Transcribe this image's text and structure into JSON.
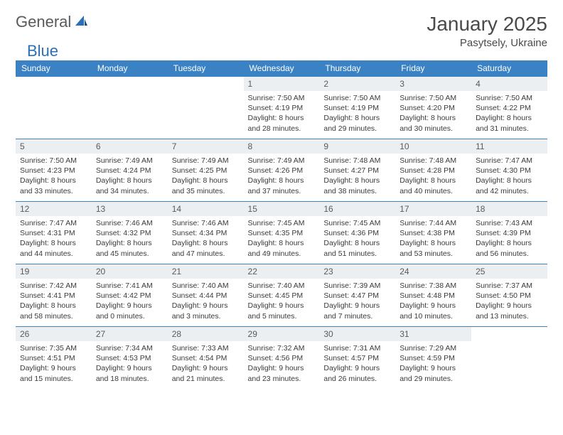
{
  "brand": {
    "name_part1": "General",
    "name_part2": "Blue"
  },
  "title": "January 2025",
  "location": "Pasytsely, Ukraine",
  "colors": {
    "header_bg": "#3a82c4",
    "header_fg": "#ffffff",
    "daynum_bg": "#eceff1",
    "border": "#3a82c4",
    "text": "#3a3a3a",
    "brand_blue": "#2c6fb5"
  },
  "day_headers": [
    "Sunday",
    "Monday",
    "Tuesday",
    "Wednesday",
    "Thursday",
    "Friday",
    "Saturday"
  ],
  "weeks": [
    [
      null,
      null,
      null,
      {
        "day": "1",
        "sunrise": "Sunrise: 7:50 AM",
        "sunset": "Sunset: 4:19 PM",
        "daylight1": "Daylight: 8 hours",
        "daylight2": "and 28 minutes."
      },
      {
        "day": "2",
        "sunrise": "Sunrise: 7:50 AM",
        "sunset": "Sunset: 4:19 PM",
        "daylight1": "Daylight: 8 hours",
        "daylight2": "and 29 minutes."
      },
      {
        "day": "3",
        "sunrise": "Sunrise: 7:50 AM",
        "sunset": "Sunset: 4:20 PM",
        "daylight1": "Daylight: 8 hours",
        "daylight2": "and 30 minutes."
      },
      {
        "day": "4",
        "sunrise": "Sunrise: 7:50 AM",
        "sunset": "Sunset: 4:22 PM",
        "daylight1": "Daylight: 8 hours",
        "daylight2": "and 31 minutes."
      }
    ],
    [
      {
        "day": "5",
        "sunrise": "Sunrise: 7:50 AM",
        "sunset": "Sunset: 4:23 PM",
        "daylight1": "Daylight: 8 hours",
        "daylight2": "and 33 minutes."
      },
      {
        "day": "6",
        "sunrise": "Sunrise: 7:49 AM",
        "sunset": "Sunset: 4:24 PM",
        "daylight1": "Daylight: 8 hours",
        "daylight2": "and 34 minutes."
      },
      {
        "day": "7",
        "sunrise": "Sunrise: 7:49 AM",
        "sunset": "Sunset: 4:25 PM",
        "daylight1": "Daylight: 8 hours",
        "daylight2": "and 35 minutes."
      },
      {
        "day": "8",
        "sunrise": "Sunrise: 7:49 AM",
        "sunset": "Sunset: 4:26 PM",
        "daylight1": "Daylight: 8 hours",
        "daylight2": "and 37 minutes."
      },
      {
        "day": "9",
        "sunrise": "Sunrise: 7:48 AM",
        "sunset": "Sunset: 4:27 PM",
        "daylight1": "Daylight: 8 hours",
        "daylight2": "and 38 minutes."
      },
      {
        "day": "10",
        "sunrise": "Sunrise: 7:48 AM",
        "sunset": "Sunset: 4:28 PM",
        "daylight1": "Daylight: 8 hours",
        "daylight2": "and 40 minutes."
      },
      {
        "day": "11",
        "sunrise": "Sunrise: 7:47 AM",
        "sunset": "Sunset: 4:30 PM",
        "daylight1": "Daylight: 8 hours",
        "daylight2": "and 42 minutes."
      }
    ],
    [
      {
        "day": "12",
        "sunrise": "Sunrise: 7:47 AM",
        "sunset": "Sunset: 4:31 PM",
        "daylight1": "Daylight: 8 hours",
        "daylight2": "and 44 minutes."
      },
      {
        "day": "13",
        "sunrise": "Sunrise: 7:46 AM",
        "sunset": "Sunset: 4:32 PM",
        "daylight1": "Daylight: 8 hours",
        "daylight2": "and 45 minutes."
      },
      {
        "day": "14",
        "sunrise": "Sunrise: 7:46 AM",
        "sunset": "Sunset: 4:34 PM",
        "daylight1": "Daylight: 8 hours",
        "daylight2": "and 47 minutes."
      },
      {
        "day": "15",
        "sunrise": "Sunrise: 7:45 AM",
        "sunset": "Sunset: 4:35 PM",
        "daylight1": "Daylight: 8 hours",
        "daylight2": "and 49 minutes."
      },
      {
        "day": "16",
        "sunrise": "Sunrise: 7:45 AM",
        "sunset": "Sunset: 4:36 PM",
        "daylight1": "Daylight: 8 hours",
        "daylight2": "and 51 minutes."
      },
      {
        "day": "17",
        "sunrise": "Sunrise: 7:44 AM",
        "sunset": "Sunset: 4:38 PM",
        "daylight1": "Daylight: 8 hours",
        "daylight2": "and 53 minutes."
      },
      {
        "day": "18",
        "sunrise": "Sunrise: 7:43 AM",
        "sunset": "Sunset: 4:39 PM",
        "daylight1": "Daylight: 8 hours",
        "daylight2": "and 56 minutes."
      }
    ],
    [
      {
        "day": "19",
        "sunrise": "Sunrise: 7:42 AM",
        "sunset": "Sunset: 4:41 PM",
        "daylight1": "Daylight: 8 hours",
        "daylight2": "and 58 minutes."
      },
      {
        "day": "20",
        "sunrise": "Sunrise: 7:41 AM",
        "sunset": "Sunset: 4:42 PM",
        "daylight1": "Daylight: 9 hours",
        "daylight2": "and 0 minutes."
      },
      {
        "day": "21",
        "sunrise": "Sunrise: 7:40 AM",
        "sunset": "Sunset: 4:44 PM",
        "daylight1": "Daylight: 9 hours",
        "daylight2": "and 3 minutes."
      },
      {
        "day": "22",
        "sunrise": "Sunrise: 7:40 AM",
        "sunset": "Sunset: 4:45 PM",
        "daylight1": "Daylight: 9 hours",
        "daylight2": "and 5 minutes."
      },
      {
        "day": "23",
        "sunrise": "Sunrise: 7:39 AM",
        "sunset": "Sunset: 4:47 PM",
        "daylight1": "Daylight: 9 hours",
        "daylight2": "and 7 minutes."
      },
      {
        "day": "24",
        "sunrise": "Sunrise: 7:38 AM",
        "sunset": "Sunset: 4:48 PM",
        "daylight1": "Daylight: 9 hours",
        "daylight2": "and 10 minutes."
      },
      {
        "day": "25",
        "sunrise": "Sunrise: 7:37 AM",
        "sunset": "Sunset: 4:50 PM",
        "daylight1": "Daylight: 9 hours",
        "daylight2": "and 13 minutes."
      }
    ],
    [
      {
        "day": "26",
        "sunrise": "Sunrise: 7:35 AM",
        "sunset": "Sunset: 4:51 PM",
        "daylight1": "Daylight: 9 hours",
        "daylight2": "and 15 minutes."
      },
      {
        "day": "27",
        "sunrise": "Sunrise: 7:34 AM",
        "sunset": "Sunset: 4:53 PM",
        "daylight1": "Daylight: 9 hours",
        "daylight2": "and 18 minutes."
      },
      {
        "day": "28",
        "sunrise": "Sunrise: 7:33 AM",
        "sunset": "Sunset: 4:54 PM",
        "daylight1": "Daylight: 9 hours",
        "daylight2": "and 21 minutes."
      },
      {
        "day": "29",
        "sunrise": "Sunrise: 7:32 AM",
        "sunset": "Sunset: 4:56 PM",
        "daylight1": "Daylight: 9 hours",
        "daylight2": "and 23 minutes."
      },
      {
        "day": "30",
        "sunrise": "Sunrise: 7:31 AM",
        "sunset": "Sunset: 4:57 PM",
        "daylight1": "Daylight: 9 hours",
        "daylight2": "and 26 minutes."
      },
      {
        "day": "31",
        "sunrise": "Sunrise: 7:29 AM",
        "sunset": "Sunset: 4:59 PM",
        "daylight1": "Daylight: 9 hours",
        "daylight2": "and 29 minutes."
      },
      null
    ]
  ]
}
